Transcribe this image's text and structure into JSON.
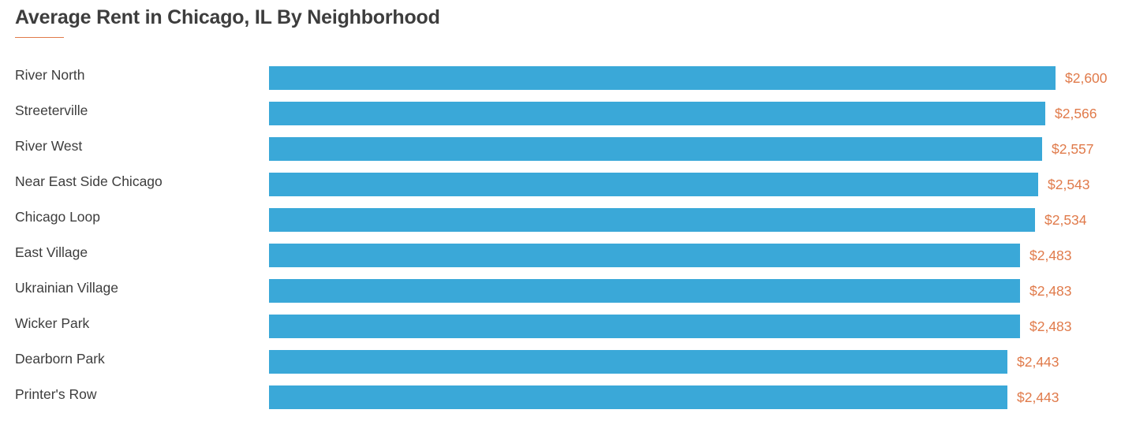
{
  "chart_data": {
    "type": "bar",
    "orientation": "horizontal",
    "title": "Average Rent in Chicago, IL By Neighborhood",
    "categories": [
      "River North",
      "Streeterville",
      "River West",
      "Near East Side Chicago",
      "Chicago Loop",
      "East Village",
      "Ukrainian Village",
      "Wicker Park",
      "Dearborn Park",
      "Printer's Row"
    ],
    "values": [
      2600,
      2566,
      2557,
      2543,
      2534,
      2483,
      2483,
      2483,
      2443,
      2443
    ],
    "value_labels": [
      "$2,600",
      "$2,566",
      "$2,557",
      "$2,543",
      "$2,534",
      "$2,483",
      "$2,483",
      "$2,483",
      "$2,443",
      "$2,443"
    ],
    "xlim": [
      0,
      2600
    ],
    "grid": false,
    "colors": {
      "bar": "#3aa8d8",
      "value_label": "#e07a4a",
      "title_underline": "#e07a4a",
      "text": "#3d3d3d"
    }
  }
}
